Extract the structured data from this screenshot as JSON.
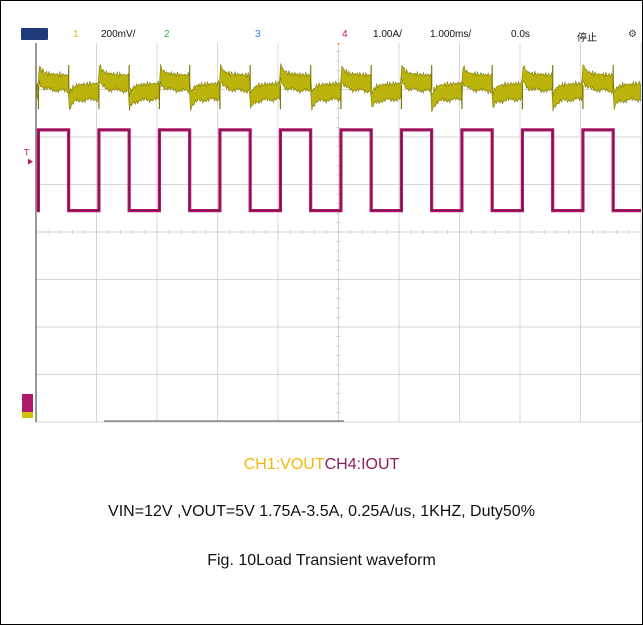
{
  "status_bar": {
    "run_indicator": "",
    "ch1_label": "1",
    "ch1_scale": "200mV/",
    "ch2_label": "2",
    "ch3_label": "3",
    "ch4_label": "4",
    "ch4_scale": "1.00A/",
    "timebase": "1.000ms/",
    "trigger_position": "0.0s",
    "run_state": "停止",
    "more_icon": "settings-icon"
  },
  "colors": {
    "ch1": "#b8b000",
    "ch4": "#b01a6c",
    "grid": "#c8c8c8",
    "caption_ch1": "#f2b705",
    "caption_ch4": "#8a1d5a"
  },
  "chart_data": {
    "type": "line",
    "x_units": "ms",
    "x_division": 1.0,
    "x_range": [
      0,
      10
    ],
    "series": [
      {
        "name": "CH1:VOUT",
        "scale": "200mV/",
        "waveform": "ripple with transient spikes at each load step",
        "period_ms": 1.0,
        "duty": 0.5
      },
      {
        "name": "CH4:IOUT",
        "scale": "1.00A/",
        "waveform": "square",
        "low_A": 1.75,
        "high_A": 3.5,
        "period_ms": 1.0,
        "duty": 0.5
      }
    ],
    "grid": true
  },
  "caption": {
    "ch1_text": "CH1:VOUT",
    "ch4_text": "CH4:IOUT",
    "conditions": "VIN=12V ,VOUT=5V 1.75A-3.5A, 0.25A/us, 1KHZ, Duty50%",
    "figure_title": "Fig. 10Load Transient waveform"
  }
}
